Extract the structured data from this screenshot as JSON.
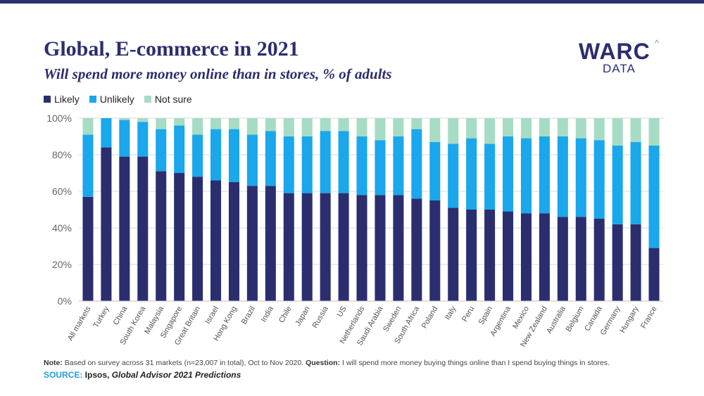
{
  "header": {
    "title": "Global, E-commerce in 2021",
    "subtitle": "Will spend more money online than in stores, % of adults"
  },
  "logo": {
    "main": "WARC",
    "caret": "^",
    "sub": "DATA"
  },
  "colors": {
    "topbar": "#2b2e6e",
    "likely": "#2b2e6e",
    "unlikely": "#1aa7ec",
    "not_sure": "#a6dcc4",
    "axis_text": "#666666"
  },
  "legend": [
    {
      "label": "Likely",
      "color": "#2b2e6e"
    },
    {
      "label": "Unlikely",
      "color": "#1aa7ec"
    },
    {
      "label": "Not sure",
      "color": "#a6dcc4"
    }
  ],
  "chart_data": {
    "type": "bar",
    "stacked": true,
    "title": "Global, E-commerce in 2021",
    "subtitle": "Will spend more money online than in stores, % of adults",
    "xlabel": "",
    "ylabel": "",
    "ylim": [
      0,
      100
    ],
    "yticks": [
      "0%",
      "20%",
      "40%",
      "60%",
      "80%",
      "100%"
    ],
    "grid": true,
    "legend_position": "top-left",
    "categories": [
      "All markets",
      "Turkey",
      "China",
      "South Korea",
      "Malaysia",
      "Singapore",
      "Great Britain",
      "Israel",
      "Hong Kong",
      "Brazil",
      "India",
      "Chile",
      "Japan",
      "Russia",
      "US",
      "Netherlands",
      "Saudi Arabia",
      "Sweden",
      "South Africa",
      "Poland",
      "Italy",
      "Peru",
      "Spain",
      "Argentina",
      "Mexico",
      "New Zealand",
      "Australia",
      "Belgium",
      "Canada",
      "Germany",
      "Hungary",
      "France"
    ],
    "series": [
      {
        "name": "Likely",
        "color": "#2b2e6e",
        "values": [
          57,
          84,
          79,
          79,
          71,
          70,
          68,
          66,
          65,
          63,
          63,
          59,
          59,
          59,
          59,
          58,
          58,
          58,
          56,
          55,
          51,
          50,
          50,
          49,
          48,
          48,
          46,
          46,
          45,
          42,
          42,
          29
        ]
      },
      {
        "name": "Unlikely",
        "color": "#1aa7ec",
        "values": [
          34,
          16,
          20,
          19,
          23,
          26,
          23,
          28,
          29,
          28,
          30,
          31,
          31,
          34,
          34,
          32,
          30,
          32,
          38,
          32,
          35,
          39,
          36,
          41,
          41,
          42,
          44,
          43,
          43,
          43,
          45,
          56
        ]
      },
      {
        "name": "Not sure",
        "color": "#a6dcc4",
        "values": [
          9,
          0,
          1,
          2,
          6,
          4,
          9,
          6,
          6,
          9,
          7,
          10,
          10,
          7,
          7,
          10,
          12,
          10,
          6,
          13,
          14,
          11,
          14,
          10,
          11,
          10,
          10,
          11,
          12,
          15,
          13,
          15
        ]
      }
    ]
  },
  "footer": {
    "note_label": "Note:",
    "note_text": " Based on survey across 31 markets (n=23,007 in total), Oct to Nov 2020. ",
    "question_label": "Question:",
    "question_text": " I will spend more money buying things online than I spend buying things in stores.",
    "source_label": "SOURCE:",
    "source_org": " Ipsos, ",
    "source_title": "Global Advisor 2021 Predictions"
  }
}
